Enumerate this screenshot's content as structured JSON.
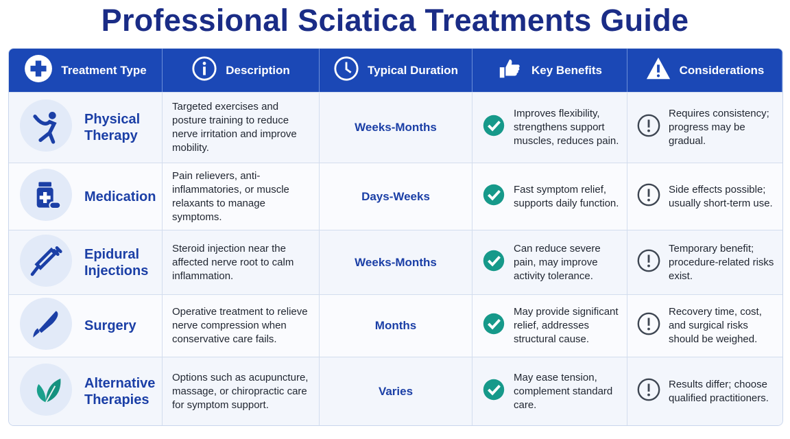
{
  "header": {
    "title": "Professional Sciatica Treatments Guide"
  },
  "table": {
    "columns": [
      "Treatment Type",
      "Description",
      "Typical Duration",
      "Key Benefits",
      "Considerations"
    ],
    "rows": [
      [
        "Physical Therapy",
        "Targeted exercises and posture training to reduce nerve irritation and improve mobility.",
        "Weeks-Months",
        "Improves flexibility, strengthens support muscles, reduces pain.",
        "Requires consistency; progress may be gradual."
      ],
      [
        "Medication",
        "Pain relievers, anti-inflammatories, or muscle relaxants to manage symptoms.",
        "Days-Weeks",
        "Fast symptom relief, supports daily function.",
        "Side effects possible; usually short-term use."
      ],
      [
        "Epidural Injections",
        "Steroid injection near the affected nerve root to calm inflammation.",
        "Weeks-Months",
        "Can reduce severe pain, may improve activity tolerance.",
        "Temporary benefit; procedure-related risks exist."
      ],
      [
        "Surgery",
        "Operative treatment to relieve nerve compression when conservative care fails.",
        "Months",
        "May provide significant relief, addresses structural cause.",
        "Recovery time, cost, and surgical risks should be weighed."
      ],
      [
        "Alternative Therapies",
        "Options such as acupuncture, massage, or chiropractic care for symptom support.",
        "Varies",
        "May ease tension, complement standard care.",
        "Results differ; choose qualified practitioners."
      ]
    ]
  }
}
